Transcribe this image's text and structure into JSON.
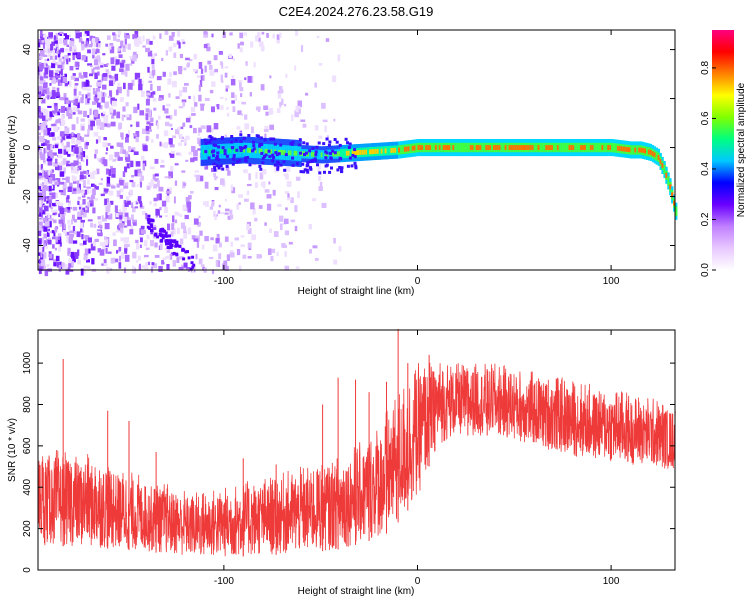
{
  "title": "C2E4.2024.276.23.58.G19",
  "chart_data": [
    {
      "type": "heatmap",
      "xlabel": "Height of straight line (km)",
      "ylabel": "Frequency (Hz)",
      "xlim": [
        -196,
        133
      ],
      "ylim": [
        -50,
        48
      ],
      "xticks": [
        "-100",
        "0",
        "100"
      ],
      "yticks": [
        "-40",
        "-20",
        "0",
        "20",
        "40"
      ],
      "colorbar": {
        "label": "Normalized spectral amplitude",
        "range": [
          0,
          0.95
        ],
        "ticks": [
          "0.0",
          "0.2",
          "0.4",
          "0.6",
          "0.8"
        ],
        "colors": [
          "#ffffff",
          "#e8c8ff",
          "#c080ff",
          "#6a00ff",
          "#0000ff",
          "#00c8ff",
          "#00ff80",
          "#80ff00",
          "#ffff00",
          "#ff8000",
          "#ff0000",
          "#ff0080"
        ]
      },
      "ridge": {
        "x": [
          -112,
          -90,
          -70,
          -50,
          -30,
          -10,
          0,
          20,
          40,
          60,
          80,
          100,
          110,
          115,
          120,
          124,
          127,
          130,
          133
        ],
        "y": [
          -2,
          -1,
          -2,
          -3,
          -2,
          -1,
          0,
          0,
          0,
          0,
          0,
          0,
          -1,
          -1,
          -2,
          -4,
          -9,
          -16,
          -26
        ]
      },
      "noise_extent_x": [
        -196,
        -40
      ]
    },
    {
      "type": "line",
      "xlabel": "Height of straight line (km)",
      "ylabel": "SNR (10 * v/v)",
      "xlim": [
        -196,
        133
      ],
      "ylim": [
        0,
        1160
      ],
      "xticks": [
        "-100",
        "0",
        "100"
      ],
      "yticks": [
        "0",
        "200",
        "400",
        "600",
        "800",
        "1000"
      ],
      "series_color": "#ef3a3a",
      "envelope": {
        "x": [
          -196,
          -170,
          -140,
          -115,
          -100,
          -80,
          -60,
          -40,
          -25,
          -15,
          -8,
          0,
          10,
          20,
          40,
          60,
          80,
          100,
          120,
          133
        ],
        "low": [
          120,
          110,
          90,
          60,
          60,
          70,
          80,
          100,
          140,
          180,
          250,
          350,
          600,
          650,
          650,
          600,
          550,
          520,
          500,
          480
        ],
        "high": [
          600,
          560,
          450,
          380,
          400,
          450,
          500,
          560,
          650,
          800,
          900,
          1000,
          1020,
          1000,
          1000,
          960,
          920,
          880,
          840,
          800
        ]
      },
      "spikes": {
        "x": [
          -183,
          -160,
          -149,
          -135,
          -90,
          -73,
          -49,
          -41,
          -32,
          -25,
          -16,
          -10,
          -5,
          6,
          9,
          26,
          36
        ],
        "y": [
          1020,
          770,
          720,
          570,
          540,
          510,
          800,
          930,
          920,
          860,
          910,
          1165,
          1000,
          1040,
          930,
          960,
          970
        ]
      }
    }
  ]
}
